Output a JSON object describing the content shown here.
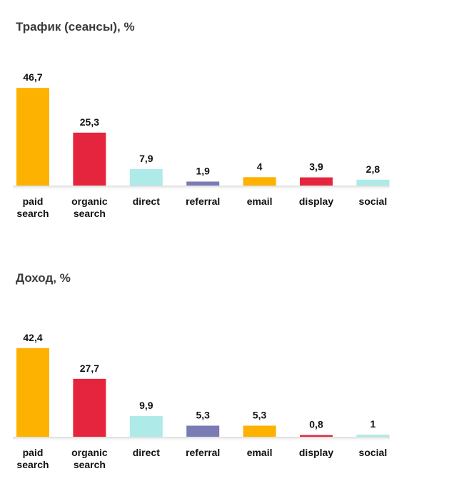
{
  "chart_data": [
    {
      "type": "bar",
      "title": "Трафик (сеансы), %",
      "categories": [
        [
          "paid",
          "search"
        ],
        [
          "organic",
          "search"
        ],
        [
          "direct"
        ],
        [
          "referral"
        ],
        [
          "email"
        ],
        [
          "display"
        ],
        [
          "social"
        ]
      ],
      "values": [
        46.7,
        25.3,
        7.9,
        1.9,
        4,
        3.9,
        2.8
      ],
      "value_labels": [
        "46,7",
        "25,3",
        "7,9",
        "1,9",
        "4",
        "3,9",
        "2,8"
      ],
      "colors": [
        "#FDB100",
        "#E5243E",
        "#AEEAE8",
        "#7A7BB5",
        "#FDB100",
        "#E5243E",
        "#AEEAE8"
      ],
      "xlabel": "",
      "ylabel": "",
      "ylim": [
        0,
        50
      ],
      "grid": false,
      "legend": "none"
    },
    {
      "type": "bar",
      "title": "Доход, %",
      "categories": [
        [
          "paid",
          "search"
        ],
        [
          "organic",
          "search"
        ],
        [
          "direct"
        ],
        [
          "referral"
        ],
        [
          "email"
        ],
        [
          "display"
        ],
        [
          "social"
        ]
      ],
      "values": [
        42.4,
        27.7,
        9.9,
        5.3,
        5.3,
        0.8,
        1
      ],
      "value_labels": [
        "42,4",
        "27,7",
        "9,9",
        "5,3",
        "5,3",
        "0,8",
        "1"
      ],
      "colors": [
        "#FDB100",
        "#E5243E",
        "#AEEAE8",
        "#7A7BB5",
        "#FDB100",
        "#E5243E",
        "#AEEAE8"
      ],
      "xlabel": "",
      "ylabel": "",
      "ylim": [
        0,
        50
      ],
      "grid": false,
      "legend": "none"
    }
  ]
}
